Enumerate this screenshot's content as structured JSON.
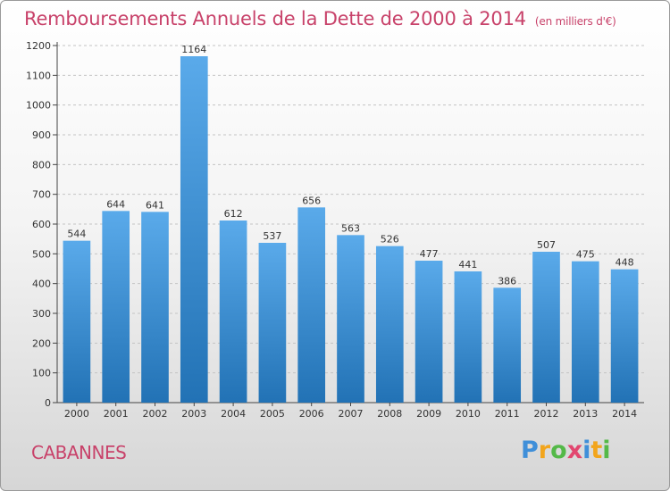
{
  "chart_data": {
    "type": "bar",
    "title": "Remboursements Annuels de la Dette de 2000 à 2014",
    "unit_note": "(en milliers d'€)",
    "categories": [
      "2000",
      "2001",
      "2002",
      "2003",
      "2004",
      "2005",
      "2006",
      "2007",
      "2008",
      "2009",
      "2010",
      "2011",
      "2012",
      "2013",
      "2014"
    ],
    "values": [
      544,
      644,
      641,
      1164,
      612,
      537,
      656,
      563,
      526,
      477,
      441,
      386,
      507,
      475,
      448
    ],
    "ylim": [
      0,
      1200
    ],
    "yticks": [
      0,
      100,
      200,
      300,
      400,
      500,
      600,
      700,
      800,
      900,
      1000,
      1100,
      1200
    ],
    "grid": true,
    "bar_color_top": "#5aaaea",
    "bar_color_bottom": "#2272b5"
  },
  "footer": {
    "commune": "CABANNES",
    "logo_letters": [
      "P",
      "r",
      "o",
      "x",
      "i",
      "t",
      "i"
    ]
  }
}
